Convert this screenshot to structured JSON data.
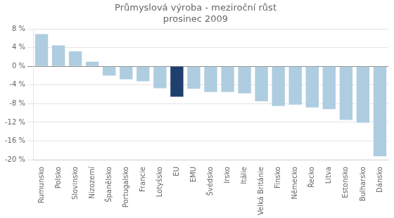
{
  "chart_data": {
    "type": "bar",
    "title": "Průmyslová výroba - meziroční růst",
    "subtitle": "prosinec 2009",
    "categories": [
      "Rumunsko",
      "Polsko",
      "Slovinsko",
      "Nizozemí",
      "Španělsko",
      "Portugalsko",
      "Francie",
      "Lotyšsko",
      "EU",
      "EMU",
      "Švédsko",
      "Irsko",
      "Itálie",
      "Velká Británie",
      "Finsko",
      "Německo",
      "Řecko",
      "Litva",
      "Estonsko",
      "Bulharsko",
      "Dánsko"
    ],
    "values": [
      6.9,
      4.5,
      3.2,
      1.0,
      -2.0,
      -2.8,
      -3.2,
      -4.7,
      -6.5,
      -4.8,
      -5.5,
      -5.5,
      -5.8,
      -7.5,
      -8.5,
      -8.2,
      -8.8,
      -9.2,
      -11.5,
      -12.1,
      -19.3
    ],
    "colors": [
      "#aecde0",
      "#aecde0",
      "#aecde0",
      "#aecde0",
      "#aecde0",
      "#aecde0",
      "#aecde0",
      "#aecde0",
      "#1f3f6e",
      "#aecde0",
      "#aecde0",
      "#aecde0",
      "#aecde0",
      "#aecde0",
      "#aecde0",
      "#aecde0",
      "#aecde0",
      "#aecde0",
      "#aecde0",
      "#aecde0",
      "#aecde0"
    ],
    "ylim": [
      -20,
      8
    ],
    "yticks": [
      {
        "value": -20,
        "label": "-20 %"
      },
      {
        "value": -16,
        "label": "-16 %"
      },
      {
        "value": -12,
        "label": "-12 %"
      },
      {
        "value": -8,
        "label": "-8 %"
      },
      {
        "value": -4,
        "label": "-4 %"
      },
      {
        "value": 0,
        "label": "0 %"
      },
      {
        "value": 4,
        "label": "4 %"
      },
      {
        "value": 8,
        "label": "8 %"
      }
    ],
    "grid": true
  }
}
